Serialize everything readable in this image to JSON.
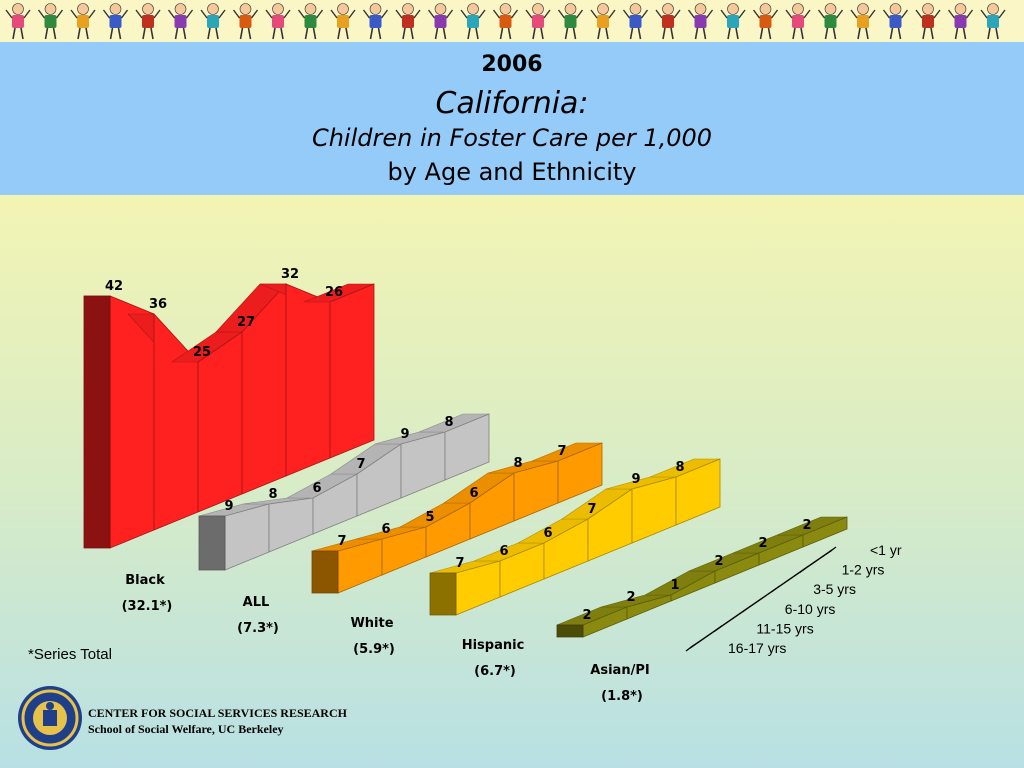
{
  "header": {
    "year": "2006",
    "state": "California:",
    "subtitle_line1": "Children in Foster Care per 1,000",
    "subtitle_line2": "by Age and Ethnicity"
  },
  "chart_data": {
    "type": "bar",
    "chart_style": "3d-ribbon",
    "title": "Children in Foster Care per 1,000 by Age and Ethnicity",
    "categories": [
      "<1 yr",
      "1-2 yrs",
      "3-5 yrs",
      "6-10 yrs",
      "11-15 yrs",
      "16-17 yrs"
    ],
    "series": [
      {
        "name": "Black",
        "total_label": "(32.1*)",
        "color": "#ff2020",
        "values": [
          26,
          32,
          27,
          25,
          36,
          42
        ]
      },
      {
        "name": "ALL",
        "total_label": "(7.3*)",
        "color": "#c4c4c4",
        "values": [
          8,
          9,
          7,
          6,
          8,
          9
        ]
      },
      {
        "name": "White",
        "total_label": "(5.9*)",
        "color": "#ff9a00",
        "values": [
          7,
          8,
          6,
          5,
          6,
          7
        ]
      },
      {
        "name": "Hispanic",
        "total_label": "(6.7*)",
        "color": "#ffcc00",
        "values": [
          8,
          9,
          7,
          6,
          6,
          7
        ]
      },
      {
        "name": "Asian/PI",
        "total_label": "(1.8*)",
        "color": "#8a8a10",
        "values": [
          2,
          2,
          2,
          1,
          2,
          2
        ]
      }
    ],
    "legend_note": "*Series Total",
    "grid": false
  },
  "footer": {
    "org_line1": "CENTER FOR SOCIAL SERVICES RESEARCH",
    "org_line2": "School of Social Welfare, UC Berkeley"
  }
}
